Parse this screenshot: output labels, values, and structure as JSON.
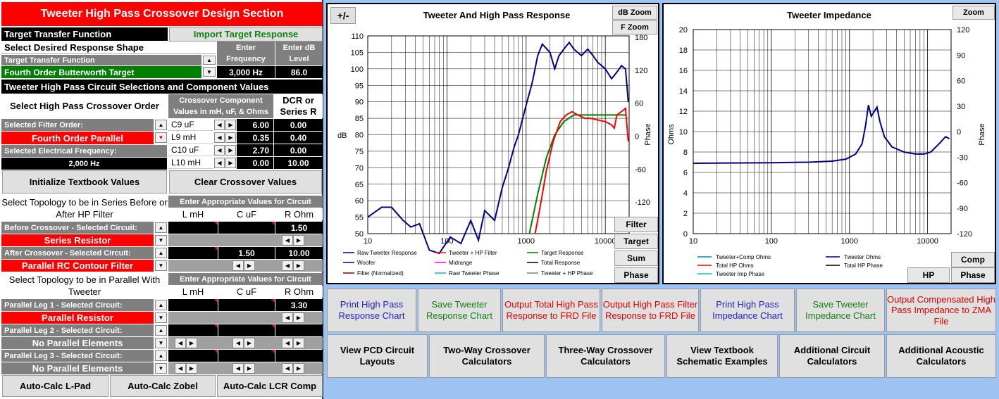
{
  "panel": {
    "title": "Tweeter High Pass Crossover Design Section",
    "target_tf_label": "Target Transfer Function",
    "import_btn": "Import Target Response",
    "select_shape": "Select Desired Response Shape",
    "enter_freq_hdr": "Enter Frequency",
    "enter_db_hdr": "Enter dB Level",
    "ttf_small": "Target Transfer Function",
    "target_name": "Fourth Order Butterworth Target",
    "freq_value": "3,000 Hz",
    "db_value": "86.0",
    "circuit_section": "Tweeter High Pass Circuit Selections and Component Values",
    "order_hdr": "Select High Pass Crossover Order",
    "comp_hdr": "Crossover Component Values in mH, uF, & Ohms",
    "dcr_hdr": "DCR or Series R",
    "sel_filter_label": "Selected Filter Order:",
    "sel_filter_value": "Fourth Order Parallel",
    "sel_freq_label": "Selected Electrical Frequency:",
    "sel_freq_value": "2,000 Hz",
    "components": [
      {
        "name": "C9  uF",
        "value": "6.00",
        "dcr": "0.00"
      },
      {
        "name": "L9 mH",
        "value": "0.35",
        "dcr": "0.40"
      },
      {
        "name": "C10  uF",
        "value": "2.70",
        "dcr": "0.00"
      },
      {
        "name": "L10 mH",
        "value": "0.00",
        "dcr": "10.00"
      }
    ],
    "init_btn": "Initialize Textbook Values",
    "clear_btn": "Clear Crossover  Values",
    "series_hdr": "Select Topology to be in Series Before or After HP Filter",
    "enter_vals": "Enter Appropriate Values for Circuit",
    "col_l": "L mH",
    "col_c": "C uF",
    "col_r": "R Ohm",
    "before_label": "Before Crossover - Selected Circuit:",
    "before_r": "1.50",
    "before_value": "Series Resistor",
    "after_label": "After Crossover - Selected Circuit:",
    "after_c": "1.50",
    "after_r": "10.00",
    "after_value": "Parallel RC Contour Filter",
    "parallel_hdr": "Select Topology to be in Parallel With Tweeter",
    "legs": [
      {
        "label": "Parallel Leg 1 - Selected Circuit:",
        "value": "Parallel Resistor",
        "r": "3.30"
      },
      {
        "label": "Parallel Leg 2 - Selected Circuit:",
        "value": "No Parallel Elements",
        "r": ""
      },
      {
        "label": "Parallel Leg 3 - Selected Circuit:",
        "value": "No Parallel Elements",
        "r": ""
      }
    ],
    "lpad_btn": "Auto-Calc  L-Pad",
    "zobel_btn": "Auto-Calc  Zobel",
    "lcr_btn": "Auto-Calc  LCR Comp"
  },
  "response_chart": {
    "pm_btn": "+/-",
    "title": "Tweeter  And High Pass Response",
    "dbzoom": "dB Zoom",
    "fzoom": "F Zoom",
    "ylabel": "dB",
    "y2label": "Phase",
    "y_ticks": [
      "110",
      "105",
      "100",
      "95",
      "90",
      "85",
      "80",
      "75",
      "70",
      "65",
      "60",
      "55",
      "50"
    ],
    "y2_ticks": [
      "180",
      "120",
      "60",
      "0",
      "-60",
      "-120"
    ],
    "x_ticks": [
      "10",
      "100",
      "1000",
      "10000"
    ],
    "legend": [
      "Raw Tweeter Response",
      "Tweeter + HP Filter",
      "Target Response",
      "Woofer",
      "Midrange",
      "Total Response",
      "Filter (Normalized)",
      "Raw Tweeter Phase",
      "Tweeter + HP Phase"
    ],
    "side_buttons": [
      "Filter",
      "Target",
      "Sum",
      "Phase"
    ]
  },
  "impedance_chart": {
    "title": "Tweeter  Impedance",
    "zoom": "Zoom",
    "ylabel": "Ohms",
    "y2label": "Phase",
    "y_ticks": [
      "20",
      "18",
      "16",
      "14",
      "12",
      "10",
      "8",
      "6",
      "4",
      "2",
      "0"
    ],
    "y2_ticks": [
      "120",
      "90",
      "60",
      "30",
      "0",
      "-30",
      "-60",
      "-90",
      "-120"
    ],
    "x_ticks": [
      "10",
      "100",
      "1000",
      "10000"
    ],
    "legend": [
      "Tweeter+Comp Ohms",
      "Tweeter Ohms",
      "Total HP Ohms",
      "Total HP Phase",
      "Tweeter Imp Phase"
    ],
    "btn_comp": "Comp",
    "btn_hp": "HP",
    "btn_phase": "Phase"
  },
  "action_row1": [
    {
      "label": "Print High Pass Response  Chart",
      "color": "#1f1fd0"
    },
    {
      "label": "Save Tweeter Response  Chart",
      "color": "#108010"
    },
    {
      "label": "Output Total High Pass  Response to FRD File",
      "color": "#e00000"
    },
    {
      "label": "Output High Pass Filter Response  to FRD File",
      "color": "#e00000"
    },
    {
      "label": "Print High Pass Impedance Chart",
      "color": "#1f1fd0"
    },
    {
      "label": "Save Tweeter Impedance Chart",
      "color": "#108010"
    },
    {
      "label": "Output Compensated High Pass Impedance to ZMA  File",
      "color": "#e00000"
    }
  ],
  "action_row2": [
    {
      "label": "View PCD Circuit Layouts"
    },
    {
      "label": "Two-Way Crossover Calculators"
    },
    {
      "label": "Three-Way Crossover Calculators"
    },
    {
      "label": "View Textbook Schematic Examples"
    },
    {
      "label": "Additional Circuit Calculators"
    },
    {
      "label": "Additional Acoustic Calculators"
    }
  ],
  "colors": {
    "red": "#ff0000",
    "green": "#008000",
    "navy": "#00008b",
    "legend_teal": "#009090"
  }
}
